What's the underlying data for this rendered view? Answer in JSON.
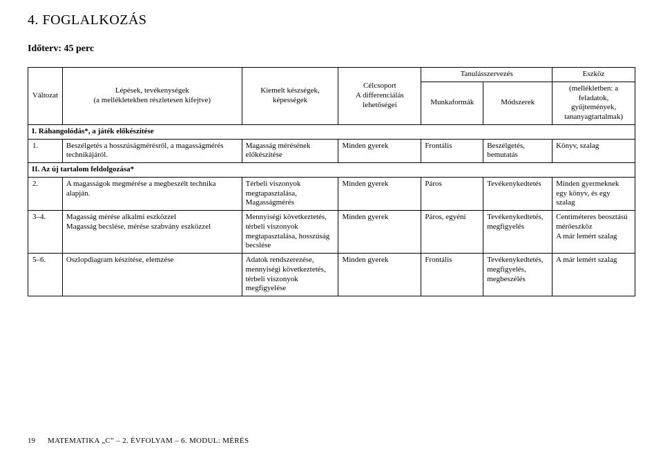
{
  "title": "4. FOGLALKOZÁS",
  "subtitle": "Időterv:  45 perc",
  "header": {
    "valtozat": "Változat",
    "lepesek_title": "Lépések, tevékenységek",
    "lepesek_sub": "(a mellékletekben részletesen kifejtve)",
    "kiemelt": "Kiemelt készségek, képességek",
    "celcsoport": "Célcsoport",
    "celcsoport_sub": "A differenciálás lehetőségei",
    "tanulas": "Tanulásszervezés",
    "munkaformak": "Munkaformák",
    "modszerek": "Módszerek",
    "eszkoz": "Eszköz",
    "eszkoz_sub": "(mellékletben: a feladatok, gyűjtemények, tananyagtartalmak)"
  },
  "section1": "I. Ráhangolódás*, a játék előkészítése",
  "row1": {
    "num": "1.",
    "lepes": "Beszélgetés a hosszúságmérésről, a magasságmérés technikájáról.",
    "kiemelt": "Magasság mérésének előkészítése",
    "cel": "Minden gyerek",
    "munka": "Frontális",
    "modszer": "Beszélgetés, bemutatás",
    "eszkoz": "Könyv, szalag"
  },
  "section2": "II. Az új tartalom feldolgozása*",
  "row2": {
    "num": "2.",
    "lepes": "A magasságok megmérése a megbeszélt technika alapján.",
    "kiemelt": "Térbeli viszonyok megtapasztalása, Magasságmérés",
    "cel": "Minden gyerek",
    "munka": "Páros",
    "modszer": "Tevékenykedtetés",
    "eszkoz": "Minden gyermeknek egy könyv, és egy szalag"
  },
  "row3": {
    "num": "3–4.",
    "lepes": "Magasság mérése alkalmi eszközzel\nMagasság becslése, mérése szabvány eszközzel",
    "kiemelt": "Mennyiségi következtetés, térbeli viszonyok megtapasztalása, hosszúság becslése",
    "cel": "Minden gyerek",
    "munka": "Páros, egyéni",
    "modszer": "Tevékenykedtetés, megfigyelés",
    "eszkoz": "Centiméteres beosztású mérőeszköz\nA már lemért szalag"
  },
  "row4": {
    "num": "5–6.",
    "lepes": "Oszlopdiagram készítése, elemzése",
    "kiemelt": "Adatok rendszerezése, mennyiségi következtetés, térbeli viszonyok megfigyelése",
    "cel": "Minden gyerek",
    "munka": "Frontális",
    "modszer": "Tevékenykedtetés, megfigyelés, megbeszélés",
    "eszkoz": "A már lemért szalag"
  },
  "footer": {
    "page": "19",
    "module": "MATEMATIKA „C” – 2. ÉVFOLYAM – 6. MODUL: MÉRÉS"
  }
}
